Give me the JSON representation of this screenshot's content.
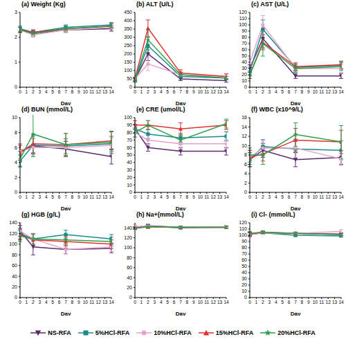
{
  "chart_data": [
    {
      "type": "line",
      "title": "(a) Weight (Kg)",
      "xlabel": "Day",
      "x": [
        0,
        2,
        7,
        14
      ],
      "xlim": [
        0,
        14
      ],
      "xticks": [
        0,
        1,
        2,
        3,
        4,
        5,
        6,
        7,
        8,
        9,
        10,
        11,
        12,
        13,
        14
      ],
      "ylim": [
        0,
        3
      ],
      "yticks": [
        0,
        1,
        2,
        3
      ],
      "legend": "bottom",
      "series": [
        {
          "name": "NS-RFA",
          "color": "#5b2a6e",
          "marker": "triangle-down",
          "values": [
            2.3,
            2.15,
            2.3,
            2.35
          ],
          "errors": [
            0.1,
            0.1,
            0.1,
            0.1
          ]
        },
        {
          "name": "5%HCl-RFA",
          "color": "#1b8a8c",
          "marker": "square",
          "values": [
            2.35,
            2.2,
            2.4,
            2.5
          ],
          "errors": [
            0.1,
            0.1,
            0.1,
            0.1
          ]
        },
        {
          "name": "10%HCl-RFA",
          "color": "#e6a3c9",
          "marker": "circle",
          "values": [
            2.3,
            2.1,
            2.3,
            2.4
          ],
          "errors": [
            0.1,
            0.1,
            0.1,
            0.1
          ]
        },
        {
          "name": "15%HCl-RFA",
          "color": "#e0302f",
          "marker": "triangle",
          "values": [
            2.3,
            2.2,
            2.35,
            2.45
          ],
          "errors": [
            0.1,
            0.1,
            0.1,
            0.1
          ]
        },
        {
          "name": "20%HCl-RFA",
          "color": "#2e9e4a",
          "marker": "star",
          "values": [
            2.3,
            2.15,
            2.35,
            2.45
          ],
          "errors": [
            0.1,
            0.1,
            0.1,
            0.1
          ]
        }
      ]
    },
    {
      "type": "line",
      "title": "(b) ALT (U/L)",
      "xlabel": "Day",
      "x": [
        0,
        2,
        7,
        14
      ],
      "xlim": [
        0,
        14
      ],
      "xticks": [
        0,
        1,
        2,
        3,
        4,
        5,
        6,
        7,
        8,
        9,
        10,
        11,
        12,
        13,
        14
      ],
      "ylim": [
        0,
        450
      ],
      "yticks": [
        0,
        50,
        100,
        150,
        200,
        250,
        300,
        350,
        400,
        450
      ],
      "series": [
        {
          "name": "NS-RFA",
          "color": "#5b2a6e",
          "marker": "triangle-down",
          "values": [
            45,
            200,
            50,
            40
          ],
          "errors": [
            10,
            40,
            10,
            10
          ]
        },
        {
          "name": "5%HCl-RFA",
          "color": "#1b8a8c",
          "marker": "square",
          "values": [
            40,
            250,
            65,
            55
          ],
          "errors": [
            10,
            50,
            15,
            10
          ]
        },
        {
          "name": "10%HCl-RFA",
          "color": "#e6a3c9",
          "marker": "circle",
          "values": [
            50,
            140,
            75,
            65
          ],
          "errors": [
            10,
            40,
            20,
            15
          ]
        },
        {
          "name": "15%HCl-RFA",
          "color": "#e0302f",
          "marker": "triangle",
          "values": [
            50,
            355,
            85,
            65
          ],
          "errors": [
            10,
            50,
            20,
            15
          ]
        },
        {
          "name": "20%HCl-RFA",
          "color": "#2e9e4a",
          "marker": "star",
          "values": [
            45,
            285,
            75,
            55
          ],
          "errors": [
            10,
            60,
            15,
            10
          ]
        }
      ]
    },
    {
      "type": "line",
      "title": "(c) AST (U/L)",
      "xlabel": "Day",
      "x": [
        0,
        2,
        7,
        14
      ],
      "xlim": [
        0,
        14
      ],
      "xticks": [
        0,
        1,
        2,
        3,
        4,
        5,
        6,
        7,
        8,
        9,
        10,
        11,
        12,
        13,
        14
      ],
      "ylim": [
        0,
        120
      ],
      "yticks": [
        0,
        10,
        20,
        30,
        40,
        50,
        60,
        70,
        80,
        90,
        100,
        110,
        120
      ],
      "series": [
        {
          "name": "NS-RFA",
          "color": "#5b2a6e",
          "marker": "triangle-down",
          "values": [
            30,
            78,
            18,
            18
          ],
          "errors": [
            6,
            15,
            4,
            4
          ]
        },
        {
          "name": "5%HCl-RFA",
          "color": "#1b8a8c",
          "marker": "square",
          "values": [
            25,
            93,
            32,
            35
          ],
          "errors": [
            6,
            15,
            6,
            6
          ]
        },
        {
          "name": "10%HCl-RFA",
          "color": "#e6a3c9",
          "marker": "circle",
          "values": [
            40,
            100,
            30,
            30
          ],
          "errors": [
            6,
            15,
            6,
            6
          ]
        },
        {
          "name": "15%HCl-RFA",
          "color": "#e0302f",
          "marker": "triangle",
          "values": [
            20,
            72,
            33,
            36
          ],
          "errors": [
            6,
            12,
            6,
            6
          ]
        },
        {
          "name": "20%HCl-RFA",
          "color": "#2e9e4a",
          "marker": "star",
          "values": [
            20,
            70,
            30,
            33
          ],
          "errors": [
            6,
            20,
            6,
            6
          ]
        }
      ]
    },
    {
      "type": "line",
      "title": "(d) BUN (mmol/L)",
      "xlabel": "Day",
      "x": [
        0,
        2,
        7,
        14
      ],
      "xlim": [
        0,
        14
      ],
      "xticks": [
        0,
        1,
        2,
        3,
        4,
        5,
        6,
        7,
        8,
        9,
        10,
        11,
        12,
        13,
        14
      ],
      "ylim": [
        0,
        10
      ],
      "yticks": [
        0,
        2,
        4,
        6,
        8,
        10
      ],
      "series": [
        {
          "name": "NS-RFA",
          "color": "#5b2a6e",
          "marker": "triangle-down",
          "values": [
            5.5,
            6.2,
            5.8,
            4.8
          ],
          "errors": [
            1,
            1,
            1,
            1
          ]
        },
        {
          "name": "5%HCl-RFA",
          "color": "#1b8a8c",
          "marker": "square",
          "values": [
            4.2,
            6.3,
            6.2,
            6.5
          ],
          "errors": [
            0.8,
            1.2,
            1,
            1
          ]
        },
        {
          "name": "10%HCl-RFA",
          "color": "#e6a3c9",
          "marker": "circle",
          "values": [
            5.5,
            6.0,
            6.0,
            6.3
          ],
          "errors": [
            1,
            1.2,
            1,
            1
          ]
        },
        {
          "name": "15%HCl-RFA",
          "color": "#e0302f",
          "marker": "triangle",
          "values": [
            5.3,
            6.5,
            6.4,
            6.9
          ],
          "errors": [
            1,
            1.2,
            1.5,
            1.2
          ]
        },
        {
          "name": "20%HCl-RFA",
          "color": "#2e9e4a",
          "marker": "star",
          "values": [
            4.5,
            7.8,
            6.4,
            6.7
          ],
          "errors": [
            1,
            3,
            1.5,
            1.5
          ]
        }
      ]
    },
    {
      "type": "line",
      "title": "(e) CRE (umol/L)",
      "xlabel": "Day",
      "x": [
        0,
        2,
        7,
        14
      ],
      "xlim": [
        0,
        14
      ],
      "xticks": [
        0,
        1,
        2,
        3,
        4,
        5,
        6,
        7,
        8,
        9,
        10,
        11,
        12,
        13,
        14
      ],
      "ylim": [
        0,
        100
      ],
      "yticks": [
        0,
        10,
        20,
        30,
        40,
        50,
        60,
        70,
        80,
        90,
        100
      ],
      "series": [
        {
          "name": "NS-RFA",
          "color": "#5b2a6e",
          "marker": "triangle-down",
          "values": [
            85,
            60,
            55,
            55
          ],
          "errors": [
            6,
            5,
            5,
            5
          ]
        },
        {
          "name": "5%HCl-RFA",
          "color": "#1b8a8c",
          "marker": "square",
          "values": [
            85,
            78,
            73,
            75
          ],
          "errors": [
            6,
            6,
            6,
            6
          ]
        },
        {
          "name": "10%HCl-RFA",
          "color": "#e6a3c9",
          "marker": "circle",
          "values": [
            80,
            70,
            65,
            65
          ],
          "errors": [
            6,
            6,
            6,
            6
          ]
        },
        {
          "name": "15%HCl-RFA",
          "color": "#e0302f",
          "marker": "triangle",
          "values": [
            90,
            90,
            85,
            90
          ],
          "errors": [
            6,
            6,
            8,
            6
          ]
        },
        {
          "name": "20%HCl-RFA",
          "color": "#2e9e4a",
          "marker": "star",
          "values": [
            80,
            90,
            70,
            92
          ],
          "errors": [
            6,
            6,
            6,
            6
          ]
        }
      ]
    },
    {
      "type": "line",
      "title": "(f) WBC (x10^9/L)",
      "xlabel": "Day",
      "x": [
        0,
        2,
        7,
        14
      ],
      "xlim": [
        0,
        14
      ],
      "xticks": [
        0,
        1,
        2,
        3,
        4,
        5,
        6,
        7,
        8,
        9,
        10,
        11,
        12,
        13,
        14
      ],
      "ylim": [
        0,
        16
      ],
      "yticks": [
        0,
        2,
        4,
        6,
        8,
        10,
        12,
        14,
        16
      ],
      "series": [
        {
          "name": "NS-RFA",
          "color": "#5b2a6e",
          "marker": "triangle-down",
          "values": [
            7,
            9,
            7,
            7.5
          ],
          "errors": [
            1.5,
            1.5,
            1.5,
            1.5
          ]
        },
        {
          "name": "5%HCl-RFA",
          "color": "#1b8a8c",
          "marker": "square",
          "values": [
            7,
            9.8,
            9.3,
            9
          ],
          "errors": [
            1.5,
            1.5,
            2,
            2
          ]
        },
        {
          "name": "10%HCl-RFA",
          "color": "#e6a3c9",
          "marker": "circle",
          "values": [
            7.5,
            9.5,
            9.5,
            7.2
          ],
          "errors": [
            1.5,
            1.5,
            2,
            1.5
          ]
        },
        {
          "name": "15%HCl-RFA",
          "color": "#e0302f",
          "marker": "triangle",
          "values": [
            7.5,
            8.2,
            11.2,
            10.8
          ],
          "errors": [
            1.5,
            1.5,
            2.5,
            2.5
          ]
        },
        {
          "name": "20%HCl-RFA",
          "color": "#2e9e4a",
          "marker": "star",
          "values": [
            8,
            8,
            12.4,
            10.8
          ],
          "errors": [
            1.5,
            2,
            2.5,
            3.5
          ]
        }
      ]
    },
    {
      "type": "line",
      "title": "(g) HGB (g/L)",
      "xlabel": "Day",
      "x": [
        0,
        2,
        7,
        14
      ],
      "xlim": [
        0,
        14
      ],
      "xticks": [
        0,
        1,
        2,
        3,
        4,
        5,
        6,
        7,
        8,
        9,
        10,
        11,
        12,
        13,
        14
      ],
      "ylim": [
        0,
        140
      ],
      "yticks": [
        0,
        20,
        40,
        60,
        80,
        100,
        120,
        140
      ],
      "series": [
        {
          "name": "NS-RFA",
          "color": "#5b2a6e",
          "marker": "triangle-down",
          "values": [
            125,
            95,
            90,
            92
          ],
          "errors": [
            10,
            15,
            8,
            8
          ]
        },
        {
          "name": "5%HCl-RFA",
          "color": "#1b8a8c",
          "marker": "square",
          "values": [
            120,
            110,
            118,
            110
          ],
          "errors": [
            10,
            10,
            8,
            8
          ]
        },
        {
          "name": "10%HCl-RFA",
          "color": "#e6a3c9",
          "marker": "circle",
          "values": [
            125,
            110,
            90,
            95
          ],
          "errors": [
            15,
            10,
            8,
            8
          ]
        },
        {
          "name": "15%HCl-RFA",
          "color": "#e0302f",
          "marker": "triangle",
          "values": [
            118,
            108,
            105,
            100
          ],
          "errors": [
            10,
            10,
            8,
            8
          ]
        },
        {
          "name": "20%HCl-RFA",
          "color": "#2e9e4a",
          "marker": "star",
          "values": [
            115,
            110,
            108,
            105
          ],
          "errors": [
            10,
            10,
            8,
            8
          ]
        }
      ]
    },
    {
      "type": "line",
      "title": "(h) Na+(mmol/L)",
      "xlabel": "Day",
      "x": [
        0,
        2,
        7,
        14
      ],
      "xlim": [
        0,
        14
      ],
      "xticks": [
        0,
        1,
        2,
        3,
        4,
        5,
        6,
        7,
        8,
        9,
        10,
        11,
        12,
        13,
        14
      ],
      "ylim": [
        0,
        150
      ],
      "yticks": [
        0,
        20,
        40,
        60,
        80,
        100,
        120,
        140
      ],
      "series": [
        {
          "name": "NS-RFA",
          "color": "#5b2a6e",
          "marker": "triangle-down",
          "values": [
            140,
            144,
            141,
            141
          ],
          "errors": [
            2,
            3,
            2,
            2
          ]
        },
        {
          "name": "5%HCl-RFA",
          "color": "#1b8a8c",
          "marker": "square",
          "values": [
            139,
            143,
            140,
            142
          ],
          "errors": [
            2,
            3,
            2,
            2
          ]
        },
        {
          "name": "10%HCl-RFA",
          "color": "#e6a3c9",
          "marker": "circle",
          "values": [
            143,
            143,
            141,
            142
          ],
          "errors": [
            4,
            3,
            2,
            2
          ]
        },
        {
          "name": "15%HCl-RFA",
          "color": "#e0302f",
          "marker": "triangle",
          "values": [
            140,
            142,
            141,
            141
          ],
          "errors": [
            2,
            3,
            2,
            2
          ]
        },
        {
          "name": "20%HCl-RFA",
          "color": "#2e9e4a",
          "marker": "star",
          "values": [
            139,
            142,
            141,
            141
          ],
          "errors": [
            2,
            3,
            2,
            2
          ]
        }
      ]
    },
    {
      "type": "line",
      "title": "(i) Cl- (mmol/L)",
      "xlabel": "Day",
      "x": [
        0,
        2,
        7,
        14
      ],
      "xlim": [
        0,
        14
      ],
      "xticks": [
        0,
        1,
        2,
        3,
        4,
        5,
        6,
        7,
        8,
        9,
        10,
        11,
        12,
        13,
        14
      ],
      "ylim": [
        0,
        120
      ],
      "yticks": [
        0,
        10,
        20,
        30,
        40,
        50,
        60,
        70,
        80,
        90,
        100,
        110,
        120
      ],
      "series": [
        {
          "name": "NS-RFA",
          "color": "#5b2a6e",
          "marker": "triangle-down",
          "values": [
            101,
            104,
            103,
            102
          ],
          "errors": [
            3,
            2,
            2,
            2
          ]
        },
        {
          "name": "5%HCl-RFA",
          "color": "#1b8a8c",
          "marker": "square",
          "values": [
            102,
            104,
            100,
            99
          ],
          "errors": [
            3,
            2,
            2,
            2
          ]
        },
        {
          "name": "10%HCl-RFA",
          "color": "#e6a3c9",
          "marker": "circle",
          "values": [
            101,
            104,
            103,
            106
          ],
          "errors": [
            4,
            2,
            2,
            3
          ]
        },
        {
          "name": "15%HCl-RFA",
          "color": "#e0302f",
          "marker": "triangle",
          "values": [
            102,
            105,
            103,
            101
          ],
          "errors": [
            3,
            2,
            2,
            2
          ]
        },
        {
          "name": "20%HCl-RFA",
          "color": "#2e9e4a",
          "marker": "star",
          "values": [
            103,
            105,
            103,
            101
          ],
          "errors": [
            3,
            2,
            2,
            2
          ]
        }
      ]
    }
  ]
}
